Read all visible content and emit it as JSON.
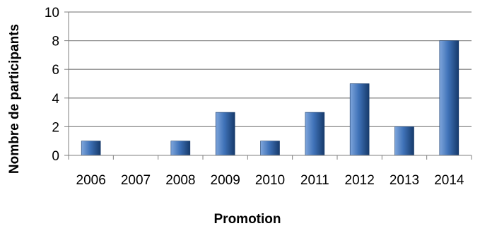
{
  "chart_data": {
    "type": "bar",
    "categories": [
      "2006",
      "2007",
      "2008",
      "2009",
      "2010",
      "2011",
      "2012",
      "2013",
      "2014"
    ],
    "values": [
      1,
      0,
      1,
      3,
      1,
      3,
      5,
      2,
      8
    ],
    "xlabel": "Promotion",
    "ylabel": "Nombre de participants",
    "ylim": [
      0,
      10
    ],
    "yticks": [
      "0",
      "2",
      "4",
      "6",
      "8",
      "10"
    ],
    "grid": true,
    "legend": "none",
    "colors": {
      "bar_light": "#7fa6dc",
      "bar_mid": "#3f72b8",
      "bar_dark": "#163a6b",
      "grid": "#8c8c8c",
      "axis": "#7f7f7f"
    }
  }
}
